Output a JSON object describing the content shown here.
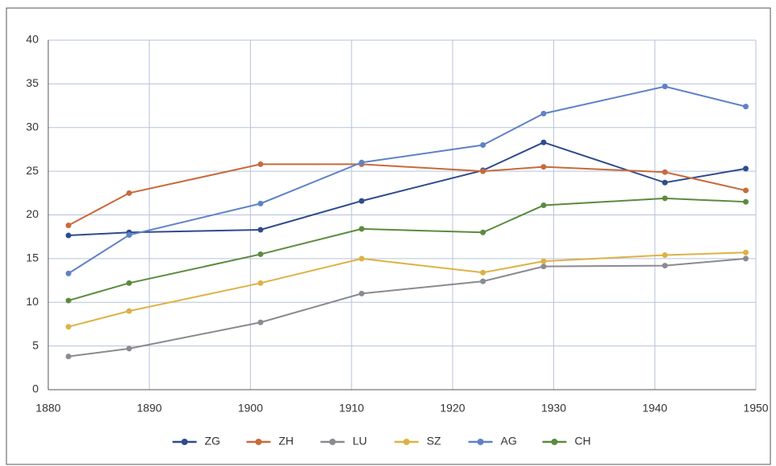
{
  "chart_data": {
    "type": "line",
    "x": [
      1882,
      1888,
      1901,
      1911,
      1923,
      1929,
      1941,
      1949
    ],
    "series": [
      {
        "name": "ZG",
        "color": "#2f4b8e",
        "values": [
          17.65,
          18.0,
          18.3,
          21.6,
          25.1,
          28.3,
          23.7,
          25.3
        ]
      },
      {
        "name": "ZH",
        "color": "#c86a3c",
        "values": [
          18.8,
          22.5,
          25.8,
          25.8,
          25.0,
          25.5,
          24.9,
          22.8
        ]
      },
      {
        "name": "LU",
        "color": "#8a8a90",
        "values": [
          3.8,
          4.7,
          7.7,
          11.0,
          12.4,
          14.1,
          14.2,
          15.0
        ]
      },
      {
        "name": "SZ",
        "color": "#ddb244",
        "values": [
          7.2,
          9.0,
          12.2,
          15.0,
          13.4,
          14.7,
          15.4,
          15.7
        ]
      },
      {
        "name": "AG",
        "color": "#5f82c6",
        "values": [
          13.3,
          17.7,
          21.3,
          26.0,
          28.0,
          31.6,
          34.7,
          32.4
        ]
      },
      {
        "name": "CH",
        "color": "#5b8b3e",
        "values": [
          10.2,
          12.2,
          15.5,
          18.4,
          18.0,
          21.1,
          21.9,
          21.5
        ]
      }
    ],
    "xlim": [
      1880,
      1950
    ],
    "xticks": [
      1880,
      1890,
      1900,
      1910,
      1920,
      1930,
      1940,
      1950
    ],
    "ylim": [
      0,
      40
    ],
    "yticks": [
      0,
      5,
      10,
      15,
      20,
      25,
      30,
      35,
      40
    ],
    "grid": true,
    "legend": "bottom"
  }
}
